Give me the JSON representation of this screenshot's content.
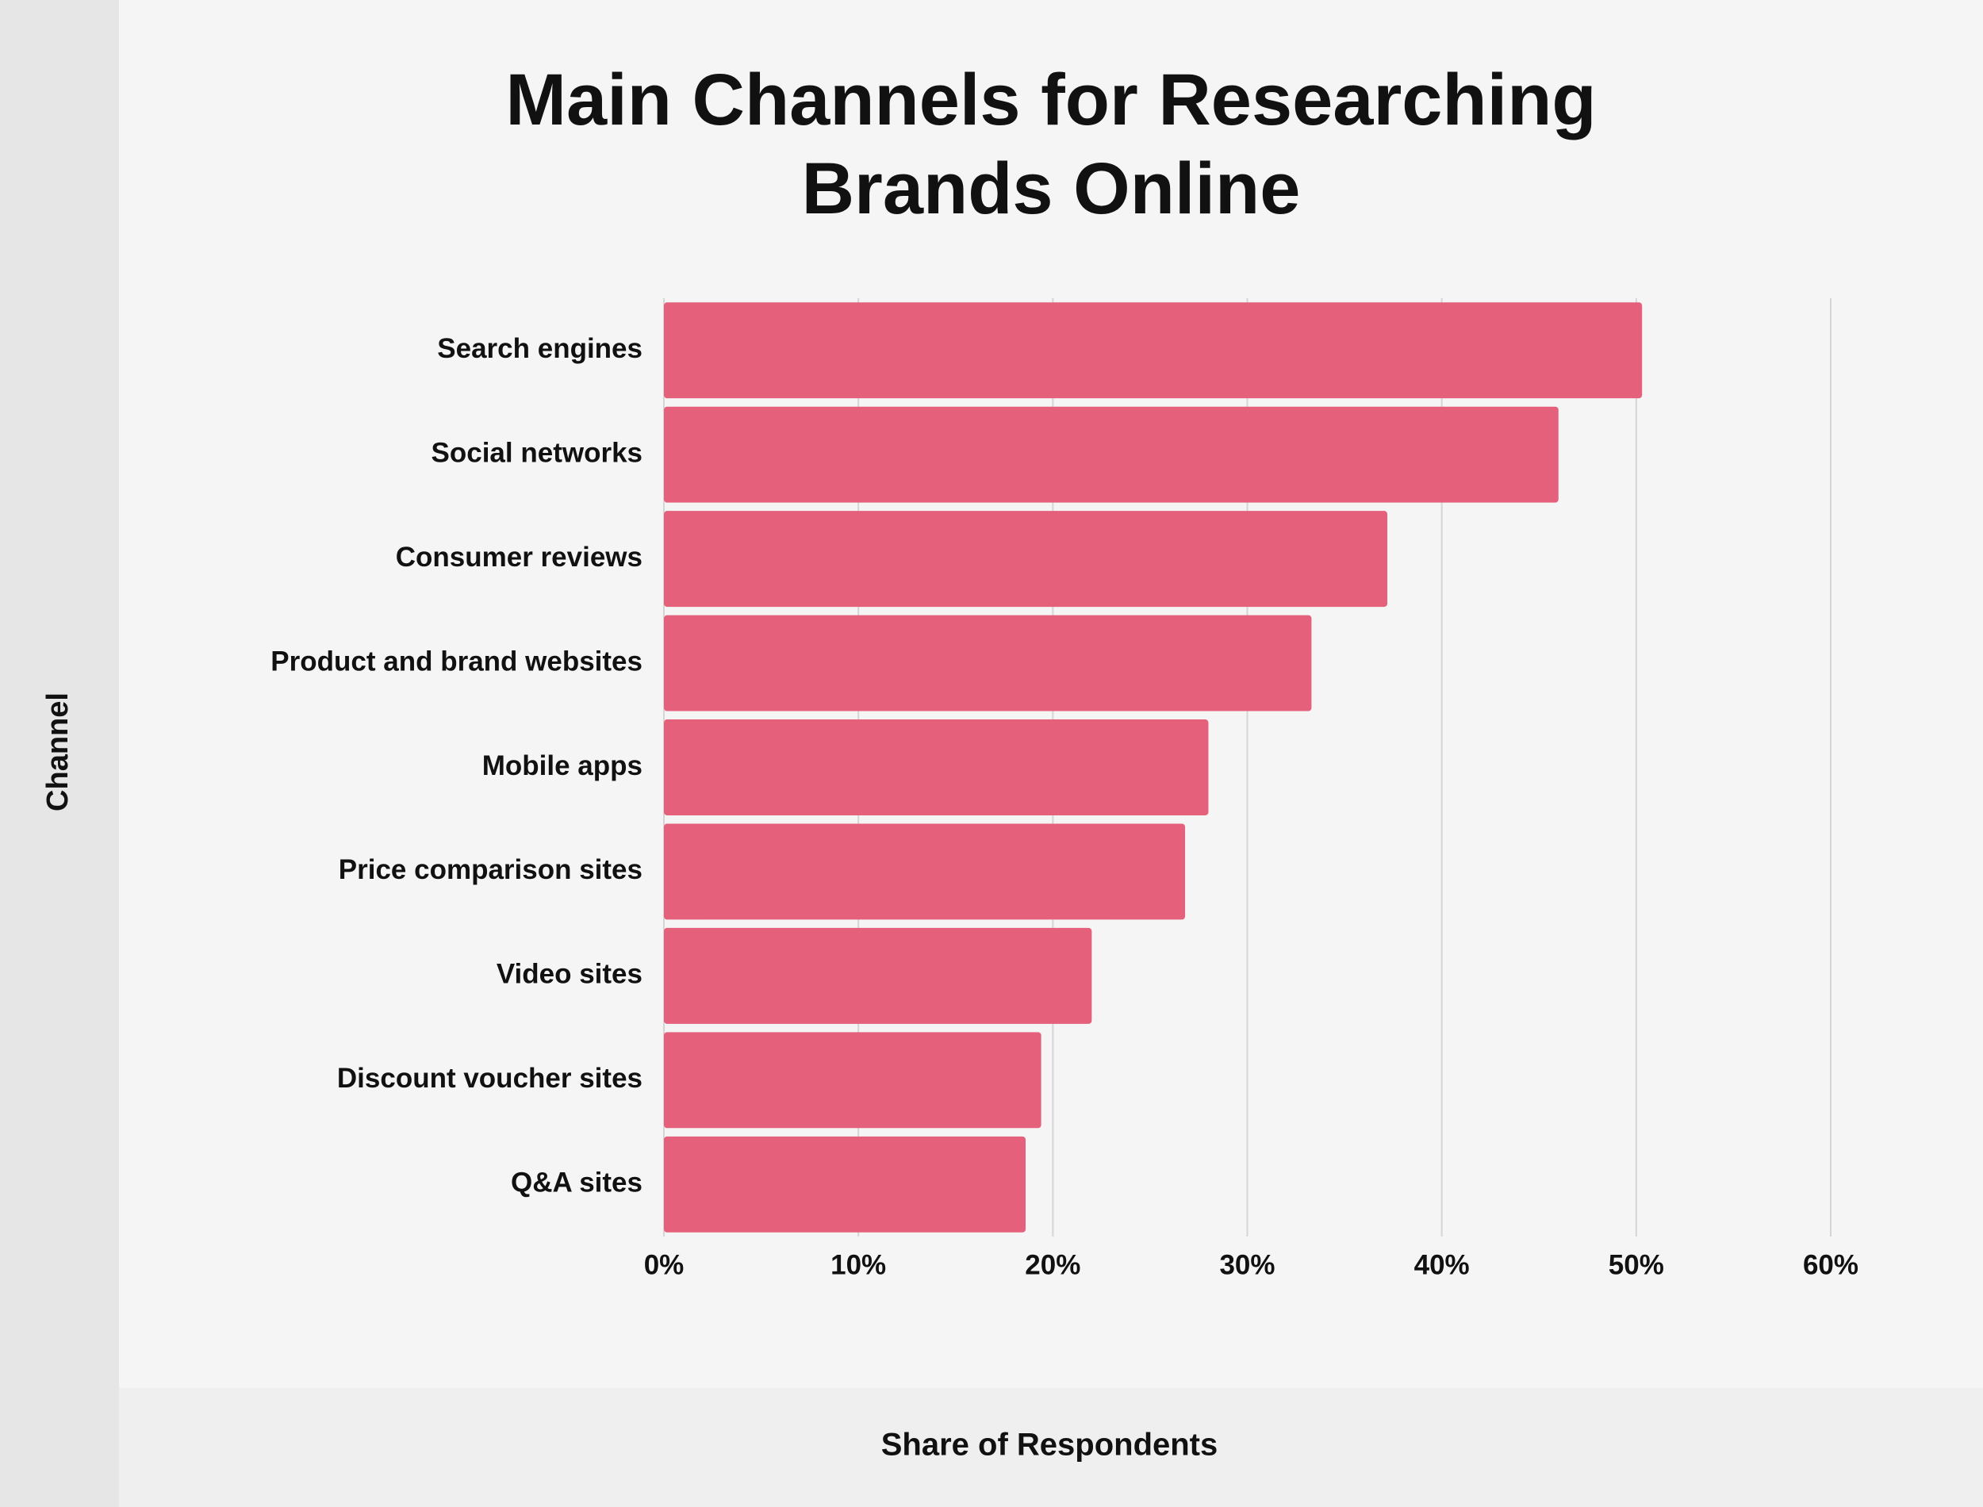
{
  "chart_data": {
    "type": "bar",
    "orientation": "horizontal",
    "title": "Main Channels for Researching Brands Online",
    "x_label": "Share of Respondents",
    "y_label": "Channel",
    "categories": [
      "Search engines",
      "Social networks",
      "Consumer reviews",
      "Product and brand websites",
      "Mobile apps",
      "Price comparison sites",
      "Video sites",
      "Discount voucher sites",
      "Q&A sites"
    ],
    "values": [
      50.3,
      46.0,
      37.2,
      33.3,
      28.0,
      26.8,
      22.0,
      19.4,
      18.6
    ],
    "color": "#e5607a",
    "xlim": [
      0,
      60
    ],
    "xticks": [
      {
        "value": 0,
        "label": "0%"
      },
      {
        "value": 10,
        "label": "10%"
      },
      {
        "value": 20,
        "label": "20%"
      },
      {
        "value": 30,
        "label": "30%"
      },
      {
        "value": 40,
        "label": "40%"
      },
      {
        "value": 50,
        "label": "50%"
      },
      {
        "value": 60,
        "label": "60%"
      }
    ],
    "grid": true
  }
}
